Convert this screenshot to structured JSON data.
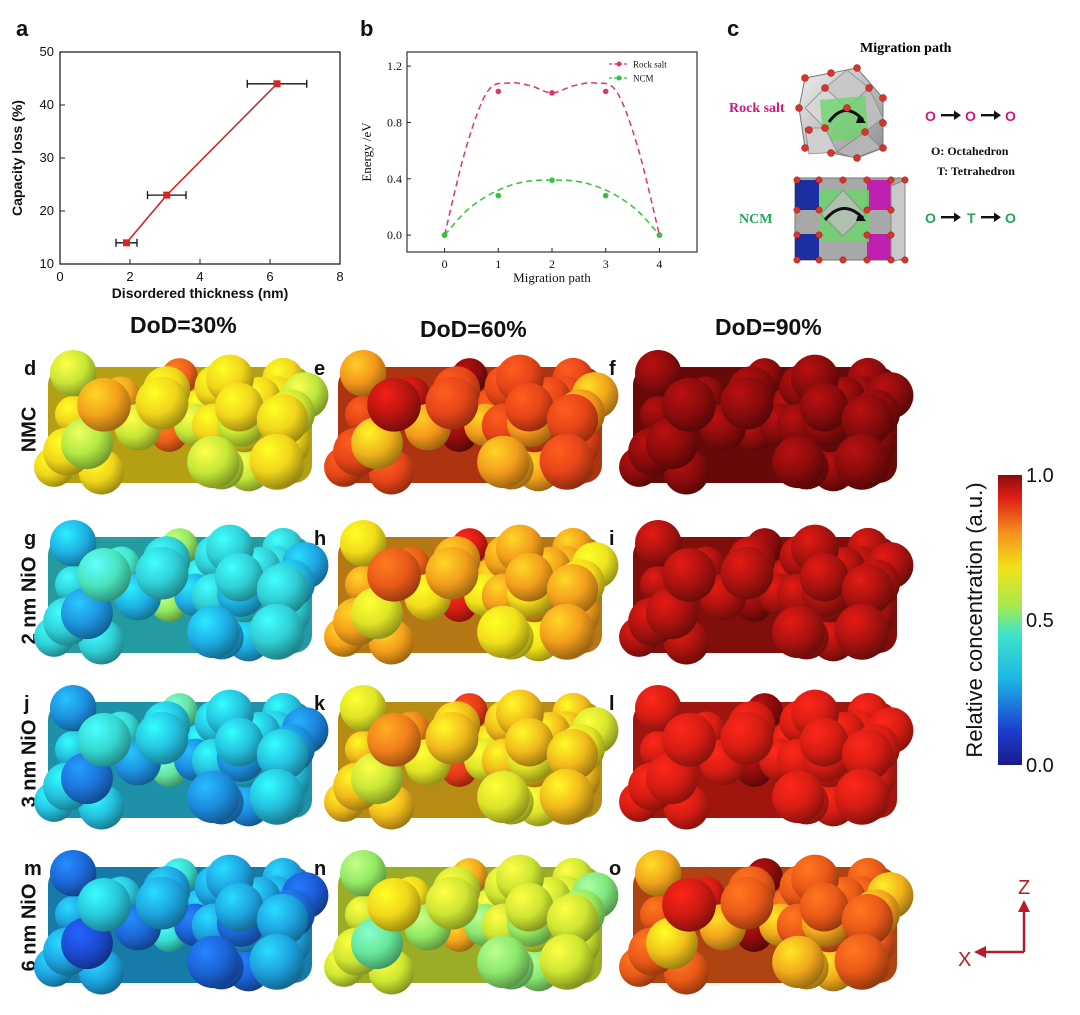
{
  "panel_letters": {
    "a": "a",
    "b": "b",
    "c": "c",
    "d": "d",
    "e": "e",
    "f": "f",
    "g": "g",
    "h": "h",
    "i": "i",
    "j": "j",
    "k": "k",
    "l": "l",
    "m": "m",
    "n": "n",
    "o": "o"
  },
  "dod_headers": [
    "DoD=30%",
    "DoD=60%",
    "DoD=90%"
  ],
  "row_labels": [
    "NMC",
    "2 nm NiO",
    "3 nm NiO",
    "6 nm NiO"
  ],
  "colors": {
    "line_a": "#d62728",
    "rock_salt": "#e0336f",
    "ncm": "#33c23a",
    "axis": "#222222",
    "c_magenta": "#d6147d",
    "c_green": "#1ea85a"
  },
  "chart_data": [
    {
      "type": "line",
      "id": "a",
      "xlabel": "Disordered thickness (nm)",
      "ylabel": "Capacity loss (%)",
      "xlim": [
        0,
        8
      ],
      "ylim": [
        10,
        50
      ],
      "xticks": [
        0,
        2,
        4,
        6,
        8
      ],
      "yticks": [
        10,
        20,
        30,
        40,
        50
      ],
      "x": [
        1.9,
        3.05,
        6.2
      ],
      "y": [
        14,
        23,
        44
      ],
      "xerr": [
        0.3,
        0.55,
        0.85
      ]
    },
    {
      "type": "line",
      "id": "b",
      "xlabel": "Migration path",
      "ylabel": "Energy /eV",
      "xlim": [
        -0.7,
        4.7
      ],
      "ylim": [
        -0.12,
        1.3
      ],
      "xticks": [
        0,
        1,
        2,
        3,
        4
      ],
      "yticks": [
        0.0,
        0.4,
        0.8,
        1.2
      ],
      "ytick_labels": [
        "0.0",
        "0.4",
        "0.8",
        "1.2"
      ],
      "legend_position": "top-right",
      "series": [
        {
          "name": "Rock salt",
          "x": [
            0,
            1,
            2,
            3,
            4
          ],
          "y": [
            0.0,
            1.02,
            1.01,
            1.02,
            0.0
          ],
          "curve_y": [
            0.0,
            0.62,
            1.02,
            1.08,
            1.06,
            1.01,
            1.06,
            1.08,
            1.02,
            0.62,
            0.0
          ]
        },
        {
          "name": "NCM",
          "x": [
            0,
            1,
            2,
            3,
            4
          ],
          "y": [
            0.0,
            0.28,
            0.39,
            0.28,
            0.0
          ],
          "curve_y": [
            0.0,
            0.17,
            0.28,
            0.35,
            0.385,
            0.39,
            0.385,
            0.35,
            0.28,
            0.17,
            0.0
          ]
        }
      ]
    },
    {
      "type": "heatmap",
      "id": "colorbar",
      "label": "Relative concentration (a.u.)",
      "ticks": [
        1.0,
        0.5,
        0.0
      ],
      "tick_labels": [
        "1.0",
        "0.5",
        "0.0"
      ]
    }
  ],
  "panel_c": {
    "title": "Migration path",
    "rock_salt_label": "Rock salt",
    "ncm_label": "NCM",
    "rock_salt_path": [
      "O",
      "O",
      "O"
    ],
    "ncm_path": [
      "O",
      "T",
      "O"
    ],
    "legend_octa": "O: Octahedron",
    "legend_tetra": "T: Tetrahedron"
  },
  "axes_legend": {
    "z": "Z",
    "x": "X"
  },
  "particle_levels": [
    [
      0.7,
      0.88,
      1.0
    ],
    [
      0.38,
      0.78,
      0.97
    ],
    [
      0.33,
      0.74,
      0.93
    ],
    [
      0.27,
      0.62,
      0.86
    ]
  ]
}
